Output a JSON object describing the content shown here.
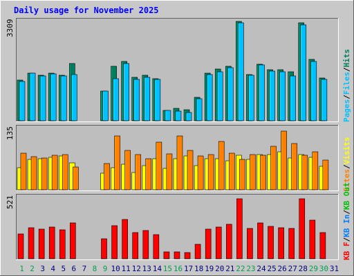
{
  "chart_data": [
    {
      "type": "bar",
      "title": "Daily usage for November 2025",
      "ylabel": "Pages / Files / Hits",
      "ymax_label": "3309",
      "ylim": [
        0,
        3309
      ],
      "categories": [
        "1",
        "2",
        "3",
        "4",
        "5",
        "6",
        "7",
        "8",
        "9",
        "10",
        "11",
        "12",
        "13",
        "14",
        "15",
        "16",
        "17",
        "18",
        "19",
        "20",
        "21",
        "22",
        "23",
        "24",
        "25",
        "26",
        "27",
        "28",
        "29",
        "30",
        "31"
      ],
      "weekend_days": [
        "1",
        "2",
        "8",
        "9",
        "15",
        "16",
        "22",
        "23",
        "29",
        "30"
      ],
      "series": [
        {
          "name": "Hits",
          "color": "#007f5f",
          "values": [
            1350,
            1580,
            1500,
            1580,
            1500,
            1900,
            0,
            0,
            980,
            1800,
            1960,
            1440,
            1510,
            1400,
            340,
            420,
            370,
            780,
            1570,
            1720,
            1800,
            3280,
            1530,
            1880,
            1690,
            1690,
            1630,
            3230,
            2040,
            1420,
            0
          ]
        },
        {
          "name": "Files",
          "color": "#00c0ff",
          "values": [
            1300,
            1570,
            1490,
            1550,
            1480,
            1520,
            0,
            0,
            970,
            1400,
            1900,
            1360,
            1440,
            1360,
            340,
            320,
            270,
            740,
            1520,
            1610,
            1760,
            3250,
            1510,
            1850,
            1640,
            1620,
            1490,
            3170,
            1960,
            1370,
            0
          ]
        },
        {
          "name": "Pages",
          "color": "#00c0ff",
          "values": [
            0,
            0,
            0,
            0,
            0,
            0,
            0,
            0,
            0,
            0,
            0,
            0,
            0,
            0,
            0,
            0,
            0,
            0,
            0,
            0,
            0,
            0,
            0,
            0,
            0,
            0,
            0,
            0,
            0,
            0,
            0
          ]
        }
      ]
    },
    {
      "type": "bar",
      "ylabel": "Visits / Sites",
      "ymax_label": "135",
      "ylim": [
        0,
        135
      ],
      "categories": [
        "1",
        "2",
        "3",
        "4",
        "5",
        "6",
        "7",
        "8",
        "9",
        "10",
        "11",
        "12",
        "13",
        "14",
        "15",
        "16",
        "17",
        "18",
        "19",
        "20",
        "21",
        "22",
        "23",
        "24",
        "25",
        "26",
        "27",
        "28",
        "29",
        "30",
        "31"
      ],
      "series": [
        {
          "name": "Visits",
          "color": "#ffff00",
          "values": [
            48,
            66,
            68,
            70,
            74,
            58,
            0,
            0,
            36,
            48,
            55,
            38,
            53,
            68,
            47,
            67,
            74,
            52,
            68,
            67,
            63,
            75,
            66,
            77,
            76,
            82,
            69,
            77,
            70,
            51,
            0
          ]
        },
        {
          "name": "Sites",
          "color": "#ff8000",
          "values": [
            79,
            72,
            69,
            75,
            76,
            50,
            0,
            0,
            57,
            117,
            86,
            77,
            67,
            104,
            78,
            117,
            85,
            73,
            77,
            105,
            79,
            66,
            77,
            75,
            94,
            128,
            100,
            75,
            82,
            64,
            0
          ]
        }
      ]
    },
    {
      "type": "bar",
      "ylabel": "KB F / KB In / KB Out",
      "ymax_label": "521",
      "ylim": [
        0,
        521
      ],
      "categories": [
        "1",
        "2",
        "3",
        "4",
        "5",
        "6",
        "7",
        "8",
        "9",
        "10",
        "11",
        "12",
        "13",
        "14",
        "15",
        "16",
        "17",
        "18",
        "19",
        "20",
        "21",
        "22",
        "23",
        "24",
        "25",
        "26",
        "27",
        "28",
        "29",
        "30",
        "31"
      ],
      "series": [
        {
          "name": "KB F",
          "color": "#ff0000",
          "values": [
            210,
            260,
            250,
            265,
            245,
            300,
            0,
            0,
            170,
            280,
            330,
            220,
            240,
            205,
            60,
            55,
            50,
            120,
            250,
            265,
            290,
            505,
            255,
            300,
            270,
            260,
            255,
            505,
            325,
            220,
            0
          ]
        },
        {
          "name": "KB In",
          "color": "#0080ff",
          "values": [
            0,
            0,
            0,
            0,
            0,
            0,
            0,
            0,
            0,
            0,
            0,
            0,
            0,
            0,
            0,
            0,
            0,
            0,
            0,
            0,
            0,
            0,
            0,
            0,
            0,
            0,
            0,
            0,
            0,
            0,
            0
          ]
        },
        {
          "name": "KB Out",
          "color": "#00c000",
          "values": [
            0,
            0,
            0,
            0,
            0,
            0,
            0,
            0,
            0,
            0,
            0,
            0,
            0,
            0,
            0,
            0,
            0,
            0,
            0,
            0,
            0,
            0,
            0,
            0,
            0,
            0,
            0,
            0,
            0,
            0,
            0
          ]
        }
      ]
    }
  ],
  "colors": {
    "outer_bg": "#c8c8c8",
    "plot_bg": "#bebebe",
    "title_text": "#0000ff",
    "weekday_text": "#000080",
    "weekend_text": "#00a050",
    "label_text": "#000000"
  }
}
